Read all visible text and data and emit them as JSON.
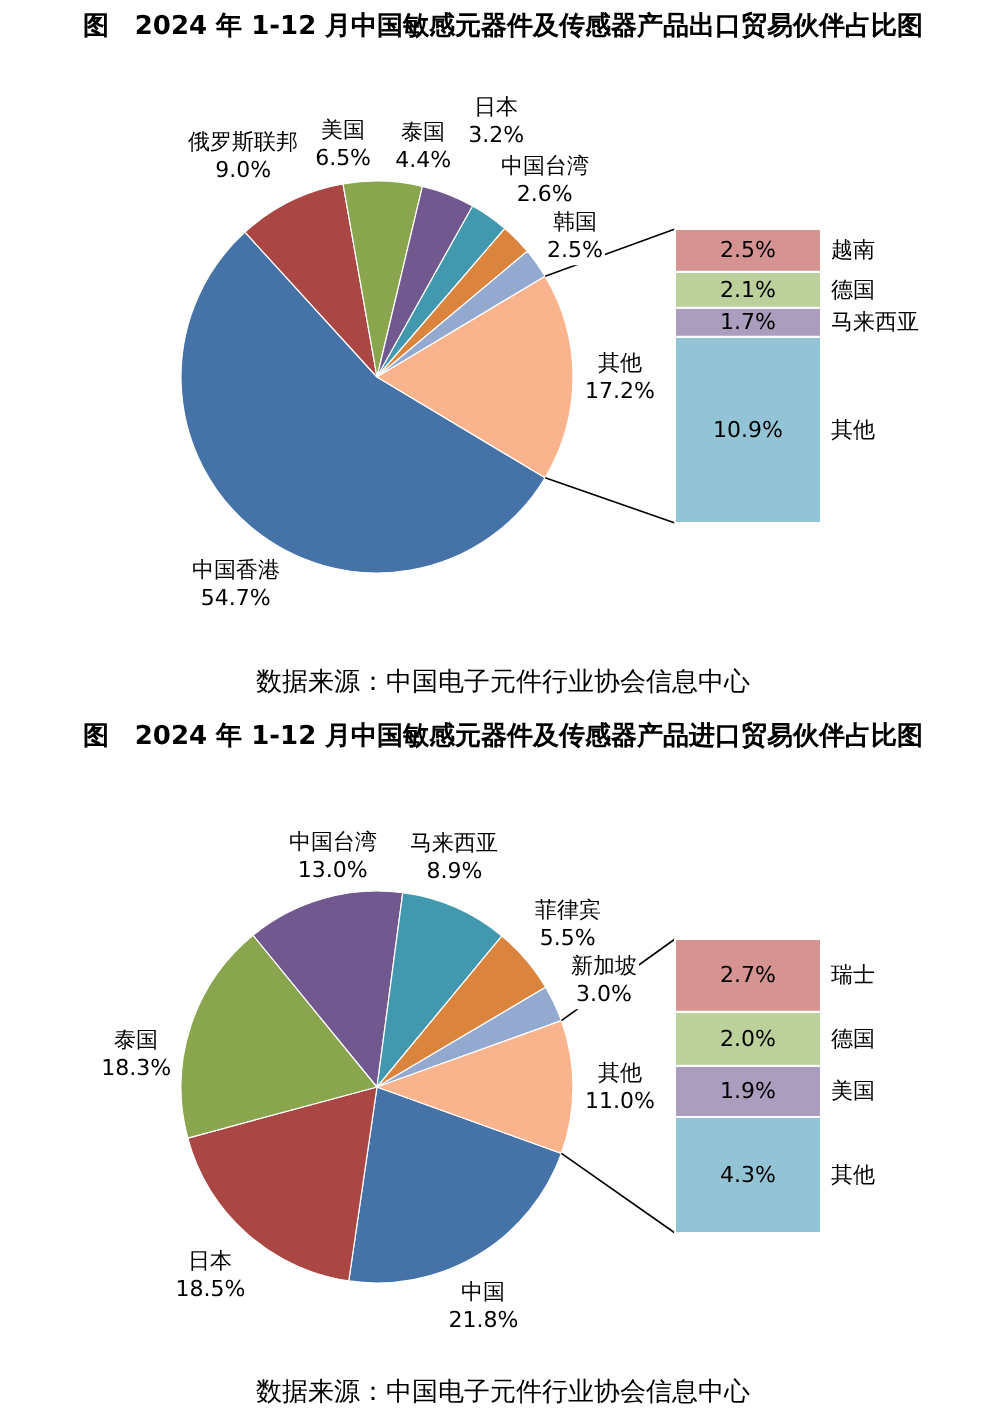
{
  "chart_data": [
    {
      "type": "pie",
      "title": "图　2024 年 1-12 月中国敏感元器件及传感器产品出口贸易伙伴占比图",
      "annotations": [
        "数据来源：中国电子元件行业协会信息中心"
      ],
      "categories": [
        "中国香港",
        "俄罗斯联邦",
        "美国",
        "泰国",
        "日本",
        "中国台湾",
        "韩国",
        "其他"
      ],
      "values": [
        54.7,
        9.0,
        6.5,
        4.4,
        3.2,
        2.6,
        2.5,
        17.2
      ],
      "value_labels": [
        "54.7%",
        "9.0%",
        "6.5%",
        "4.4%",
        "3.2%",
        "2.6%",
        "2.5%",
        "17.2%"
      ],
      "colors": [
        "#4572a7",
        "#aa4643",
        "#89a54e",
        "#71588f",
        "#4198af",
        "#db843d",
        "#93a9cf",
        "#f9b48e"
      ]
    },
    {
      "type": "bar",
      "stacked": true,
      "categories": [
        null
      ],
      "series": [
        {
          "name": "其他",
          "color": "#93c4d6",
          "values": [
            10.9
          ],
          "value_labels": [
            "10.9%"
          ]
        },
        {
          "name": "马来西亚",
          "color": "#ab9dbe",
          "values": [
            1.7
          ],
          "value_labels": [
            "1.7%"
          ]
        },
        {
          "name": "德国",
          "color": "#bbd09a",
          "values": [
            2.1
          ],
          "value_labels": [
            "2.1%"
          ]
        },
        {
          "name": "越南",
          "color": "#d59391",
          "values": [
            2.5
          ],
          "value_labels": [
            "2.5%"
          ]
        }
      ]
    },
    {
      "type": "pie",
      "title": "图　2024 年 1-12 月中国敏感元器件及传感器产品进口贸易伙伴占比图",
      "annotations": [
        "数据来源：中国电子元件行业协会信息中心"
      ],
      "categories": [
        "中国",
        "日本",
        "泰国",
        "中国台湾",
        "马来西亚",
        "菲律宾",
        "新加坡",
        "其他"
      ],
      "values": [
        21.8,
        18.5,
        18.3,
        13.0,
        8.9,
        5.5,
        3.0,
        11.0
      ],
      "value_labels": [
        "21.8%",
        "18.5%",
        "18.3%",
        "13.0%",
        "8.9%",
        "5.5%",
        "3.0%",
        "11.0%"
      ],
      "colors": [
        "#4572a7",
        "#aa4643",
        "#89a54e",
        "#71588f",
        "#4198af",
        "#db843d",
        "#93a9cf",
        "#f9b48e"
      ]
    },
    {
      "type": "bar",
      "stacked": true,
      "categories": [
        null
      ],
      "series": [
        {
          "name": "其他",
          "color": "#93c4d6",
          "values": [
            4.3
          ],
          "value_labels": [
            "4.3%"
          ]
        },
        {
          "name": "美国",
          "color": "#ab9dbe",
          "values": [
            1.9
          ],
          "value_labels": [
            "1.9%"
          ]
        },
        {
          "name": "德国",
          "color": "#bbd09a",
          "values": [
            2.0
          ],
          "value_labels": [
            "2.0%"
          ]
        },
        {
          "name": "瑞士",
          "color": "#d59391",
          "values": [
            2.7
          ],
          "value_labels": [
            "2.7%"
          ]
        }
      ]
    }
  ]
}
